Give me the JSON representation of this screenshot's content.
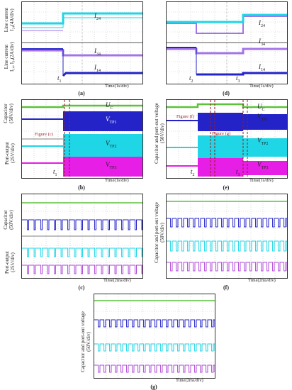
{
  "panels": {
    "a": {
      "label": "(a)",
      "time": "Time(1s/div)",
      "y_top_a": "Line current",
      "y_top_b": "I₂₄(4A/div)",
      "y_bot_a": "Line current",
      "y_bot_b": "I₁₄, I₃₄(2A/div)",
      "sig1": "I",
      "sig1s": "24",
      "sig2": "I",
      "sig2s": "34",
      "sig3": "I",
      "sig3s": "14",
      "t1": "t",
      "t1s": "1"
    },
    "d": {
      "label": "(d)",
      "time": "Time(1s/div)",
      "sig1": "I",
      "sig1s": "24",
      "sig2": "I",
      "sig2s": "34",
      "sig3": "I",
      "sig3s": "14",
      "t2": "t",
      "t2s": "2",
      "t3": "t",
      "t3s": "3"
    },
    "b": {
      "label": "(b)",
      "time": "Time(1s/div)",
      "y_top_a": "Capacitor",
      "y_top_b": "(50V/div)",
      "y_bot_a": "Port-output",
      "y_bot_b": "(25V/div)",
      "ann": "Figure (c)",
      "sig1": "U",
      "sig1s": "C",
      "sig2": "V",
      "sig2s": "TP1",
      "sig3": "V",
      "sig3s": "TP2",
      "sig4": "V",
      "sig4s": "TP3",
      "t1": "t",
      "t1s": "1"
    },
    "e": {
      "label": "(e)",
      "time": "Time(1s/div)",
      "y_a": "Capacitor and port-out voltage",
      "y_b": "(50V/div)",
      "ann1": "Figure (f)",
      "ann2": "Figure (g)",
      "sig1": "U",
      "sig1s": "C",
      "sig2": "V",
      "sig2s": "TP1",
      "sig3": "V",
      "sig3s": "TP2",
      "sig4": "V",
      "sig4s": "TP3",
      "t2": "t",
      "t2s": "2",
      "t3": "t",
      "t3s": "3"
    },
    "c": {
      "label": "(c)",
      "time": "Time(2ms/div)",
      "y_top_a": "Capacitor",
      "y_top_b": "(50V/div)",
      "y_bot_a": "Port-output",
      "y_bot_b": "(25V/div)"
    },
    "f": {
      "label": "(f)",
      "time": "Time(2ms/div)",
      "y_a": "Capacitor and port-out voltage",
      "y_b": "(50V/div)"
    },
    "g": {
      "label": "(g)",
      "time": "Time(2ms/div)",
      "y_a": "Capacitor and port-out voltage",
      "y_b": "(50V/div)"
    }
  },
  "colors": {
    "cyan": "#1ed6e6",
    "violet": "#a374e8",
    "blue": "#2323c8",
    "green": "#5bc23a",
    "magenta": "#e61ee6",
    "grid": "#c8c8c8"
  }
}
